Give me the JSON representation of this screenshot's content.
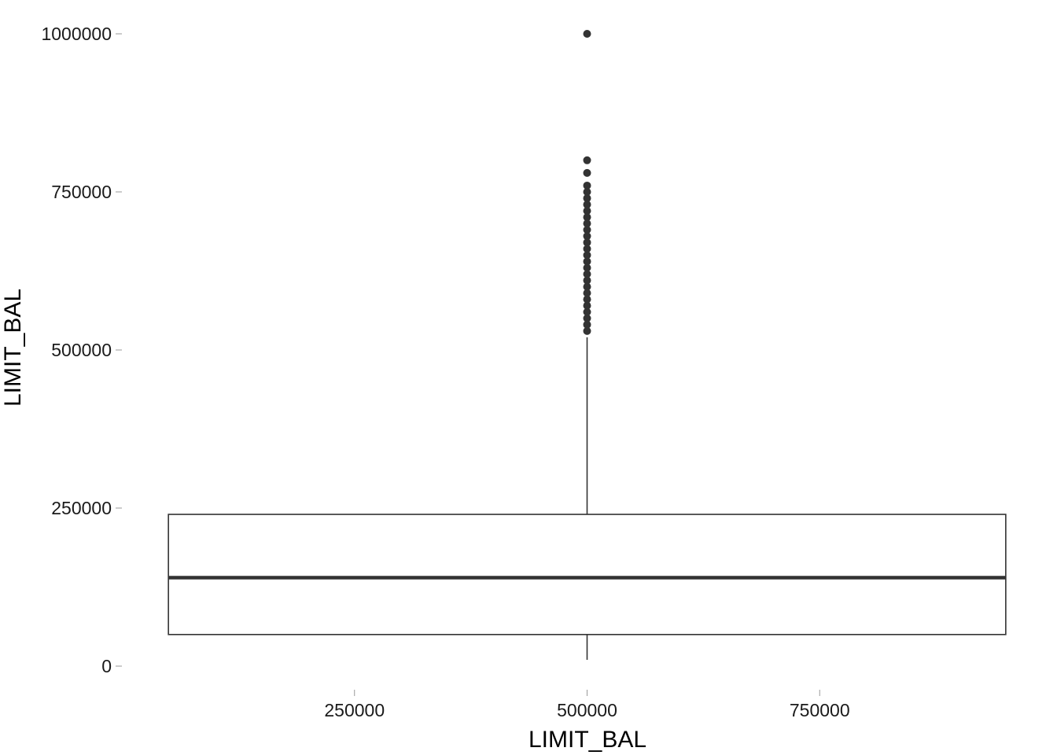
{
  "chart_data": {
    "type": "boxplot",
    "title": "",
    "xlabel": "LIMIT_BAL",
    "ylabel": "LIMIT_BAL",
    "grid": false,
    "xlim": [
      0,
      1000000
    ],
    "ylim": [
      -20000,
      1020000
    ],
    "x_ticks": [
      250000,
      500000,
      750000
    ],
    "y_ticks": [
      0,
      250000,
      500000,
      750000,
      1000000
    ],
    "box": {
      "x_range": [
        50000,
        950000
      ],
      "x_center": 500000,
      "min": 10000,
      "q1": 50000,
      "median": 140000,
      "q3": 240000,
      "upper_whisker": 520000
    },
    "outliers": [
      530000,
      540000,
      550000,
      560000,
      570000,
      580000,
      590000,
      600000,
      610000,
      620000,
      630000,
      640000,
      650000,
      660000,
      670000,
      680000,
      690000,
      700000,
      710000,
      720000,
      730000,
      740000,
      750000,
      760000,
      780000,
      800000,
      1000000
    ],
    "colors": {
      "line": "#333333",
      "outlier": "#333333",
      "tick": "#999999"
    }
  }
}
